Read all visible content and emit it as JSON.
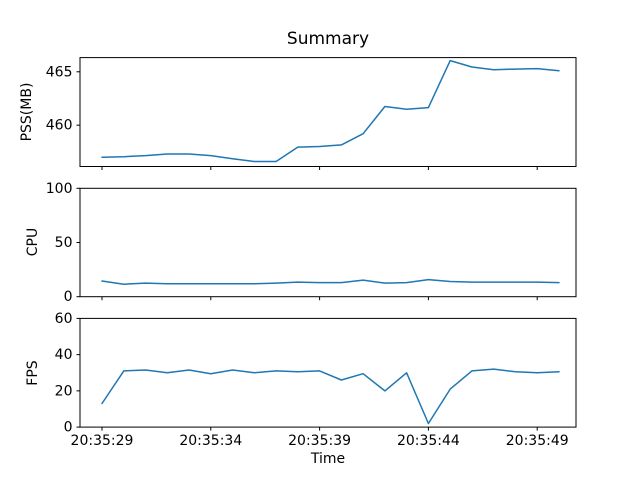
{
  "title": "Summary",
  "xlabel": "Time",
  "line_color": "#1f77b4",
  "chart_data": [
    {
      "type": "line",
      "title": "Summary",
      "ylabel": "PSS(MB)",
      "ylim": [
        456.13,
        466.33
      ],
      "yticks": [
        460,
        465
      ],
      "grid": false,
      "legend": "none",
      "x": [
        "20:35:29",
        "20:35:30",
        "20:35:31",
        "20:35:32",
        "20:35:33",
        "20:35:34",
        "20:35:35",
        "20:35:36",
        "20:35:37",
        "20:35:38",
        "20:35:39",
        "20:35:40",
        "20:35:41",
        "20:35:42",
        "20:35:43",
        "20:35:44",
        "20:35:45",
        "20:35:46",
        "20:35:47",
        "20:35:48",
        "20:35:49",
        "20:35:50"
      ],
      "series": [
        {
          "name": "PSS(MB)",
          "values": [
            457.0,
            457.05,
            457.15,
            457.3,
            457.3,
            457.15,
            456.85,
            456.6,
            456.6,
            457.95,
            458.0,
            458.15,
            459.2,
            461.75,
            461.5,
            461.65,
            466.05,
            465.45,
            465.2,
            465.25,
            465.3,
            465.1
          ]
        }
      ]
    },
    {
      "type": "line",
      "ylabel": "CPU",
      "ylim": [
        0,
        100
      ],
      "yticks": [
        0,
        50,
        100
      ],
      "grid": false,
      "legend": "none",
      "x": [
        "20:35:29",
        "20:35:30",
        "20:35:31",
        "20:35:32",
        "20:35:33",
        "20:35:34",
        "20:35:35",
        "20:35:36",
        "20:35:37",
        "20:35:38",
        "20:35:39",
        "20:35:40",
        "20:35:41",
        "20:35:42",
        "20:35:43",
        "20:35:44",
        "20:35:45",
        "20:35:46",
        "20:35:47",
        "20:35:48",
        "20:35:49",
        "20:35:50"
      ],
      "series": [
        {
          "name": "CPU",
          "values": [
            14.5,
            11.5,
            12.5,
            12,
            12,
            12,
            12,
            12,
            12.5,
            13.5,
            13,
            13,
            15.3,
            12.5,
            13,
            15.8,
            14,
            13.5,
            13.5,
            13.5,
            13.5,
            13
          ]
        }
      ]
    },
    {
      "type": "line",
      "ylabel": "FPS",
      "xlabel": "Time",
      "ylim": [
        0,
        60
      ],
      "yticks": [
        0,
        20,
        40,
        60
      ],
      "grid": false,
      "legend": "none",
      "x": [
        "20:35:29",
        "20:35:30",
        "20:35:31",
        "20:35:32",
        "20:35:33",
        "20:35:34",
        "20:35:35",
        "20:35:36",
        "20:35:37",
        "20:35:38",
        "20:35:39",
        "20:35:40",
        "20:35:41",
        "20:35:42",
        "20:35:43",
        "20:35:44",
        "20:35:45",
        "20:35:46",
        "20:35:47",
        "20:35:48",
        "20:35:49",
        "20:35:50"
      ],
      "series": [
        {
          "name": "FPS",
          "values": [
            13,
            31,
            31.5,
            30,
            31.5,
            29.5,
            31.5,
            30,
            31,
            30.5,
            31,
            26,
            29.5,
            20,
            30,
            2,
            21,
            31,
            32,
            30.5,
            30,
            30.5
          ]
        }
      ]
    }
  ],
  "xticks": {
    "indices": [
      0,
      5,
      10,
      15,
      20
    ],
    "labels": [
      "20:35:29",
      "20:35:34",
      "20:35:39",
      "20:35:44",
      "20:35:49"
    ]
  }
}
